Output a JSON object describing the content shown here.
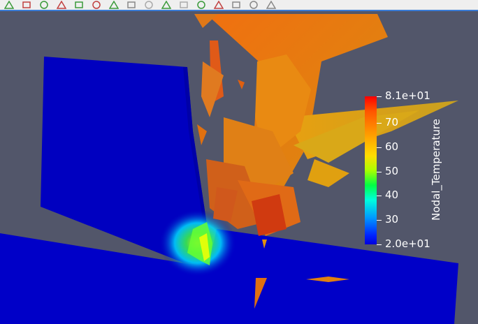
{
  "toolbar": {
    "buttons": [
      {
        "name": "select-points-on-icon",
        "color": "#3a9a3a"
      },
      {
        "name": "select-points-through-icon",
        "color": "#c04040"
      },
      {
        "name": "zoom-to-box-icon",
        "color": "#3a9a3a"
      },
      {
        "name": "select-cells-polygon-icon",
        "color": "#c04040"
      },
      {
        "name": "interactive-select-icon",
        "color": "#3a9a3a"
      },
      {
        "name": "select-blocks-icon",
        "color": "#c04040"
      },
      {
        "name": "hover-points-icon",
        "color": "#3a9a3a"
      },
      {
        "name": "frustum-select-icon",
        "color": "#888888"
      },
      {
        "name": "pick-point-icon",
        "color": "#aaaaaa"
      },
      {
        "name": "hover-cells-icon",
        "color": "#3a9a3a"
      },
      {
        "name": "probe-icon",
        "color": "#aaaaaa"
      },
      {
        "name": "render-select-icon",
        "color": "#3a9a3a"
      },
      {
        "name": "link-select-icon",
        "color": "#c04040"
      },
      {
        "name": "grow-selection-icon",
        "color": "#888888"
      },
      {
        "name": "shrink-selection-icon",
        "color": "#888888"
      },
      {
        "name": "clear-selection-icon",
        "color": "#888888"
      }
    ]
  },
  "colorbar": {
    "title": "Nodal_Temperature",
    "range": [
      20,
      81
    ],
    "labels": [
      "8.1e+01",
      "70",
      "60",
      "50",
      "40",
      "30",
      "2.0e+01"
    ],
    "label_values": [
      81,
      70,
      60,
      50,
      40,
      30,
      20
    ]
  },
  "colors": {
    "background": "#52566a",
    "plate": "#0000c0",
    "accent": "#3a7bd5"
  }
}
